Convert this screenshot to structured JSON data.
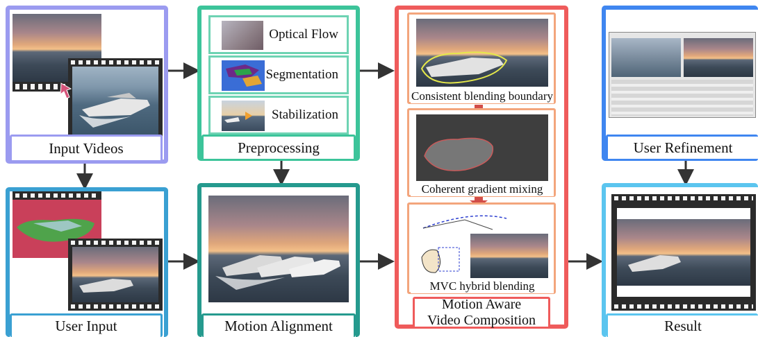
{
  "colors": {
    "input": "#9b9bf0",
    "preprocess": "#3cc49a",
    "composition": "#ef5b5b",
    "refinement": "#3f86f0",
    "user_input": "#3aa0d2",
    "alignment": "#259a8e",
    "result": "#5bc5ef",
    "sub_orange": "#f3a57c",
    "arrow": "#333333"
  },
  "stages": {
    "input_videos": "Input Videos",
    "preprocessing": "Preprocessing",
    "composition_line1": "Motion Aware",
    "composition_line2": "Video Composition",
    "user_refinement": "User Refinement",
    "user_input": "User Input",
    "motion_alignment": "Motion Alignment",
    "result": "Result"
  },
  "preprocessing_steps": [
    "Optical Flow",
    "Segmentation",
    "Stabilization"
  ],
  "composition_steps": [
    "Consistent blending boundary",
    "Coherent gradient mixing",
    "MVC hybrid blending"
  ]
}
